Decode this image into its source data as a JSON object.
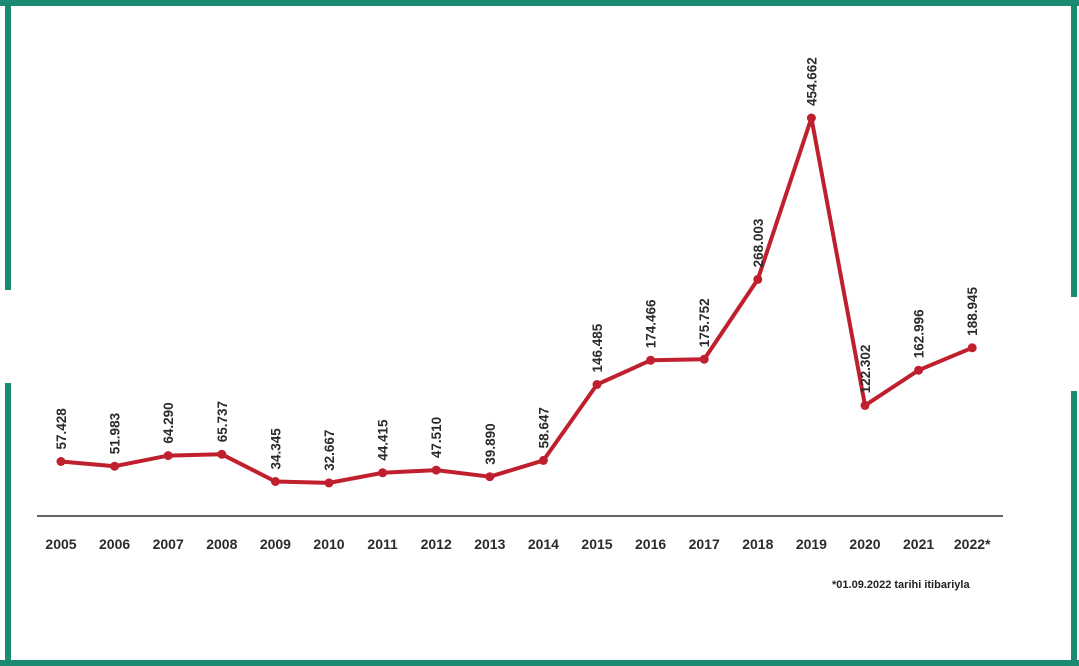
{
  "colors": {
    "border": "#1a8a72",
    "line": "#c0202e",
    "axis": "#333333",
    "text": "#2b2b2b"
  },
  "footnote": "*01.09.2022 tarihi itibariyla",
  "chart_data": {
    "type": "line",
    "title": "",
    "xlabel": "",
    "ylabel": "",
    "grid": false,
    "categories": [
      "2005",
      "2006",
      "2007",
      "2008",
      "2009",
      "2010",
      "2011",
      "2012",
      "2013",
      "2014",
      "2015",
      "2016",
      "2017",
      "2018",
      "2019",
      "2020",
      "2021",
      "2022*"
    ],
    "series": [
      {
        "values": [
          57428,
          51983,
          64290,
          65737,
          34345,
          32667,
          44415,
          47510,
          39890,
          58647,
          146485,
          174466,
          175752,
          268003,
          454662,
          122302,
          162996,
          188945
        ],
        "labels": [
          "57.428",
          "51.983",
          "64.290",
          "65.737",
          "34.345",
          "32.667",
          "44.415",
          "47.510",
          "39.890",
          "58.647",
          "146.485",
          "174.466",
          "175.752",
          "268.003",
          "454.662",
          "122.302",
          "162.996",
          "188.945"
        ]
      }
    ]
  }
}
